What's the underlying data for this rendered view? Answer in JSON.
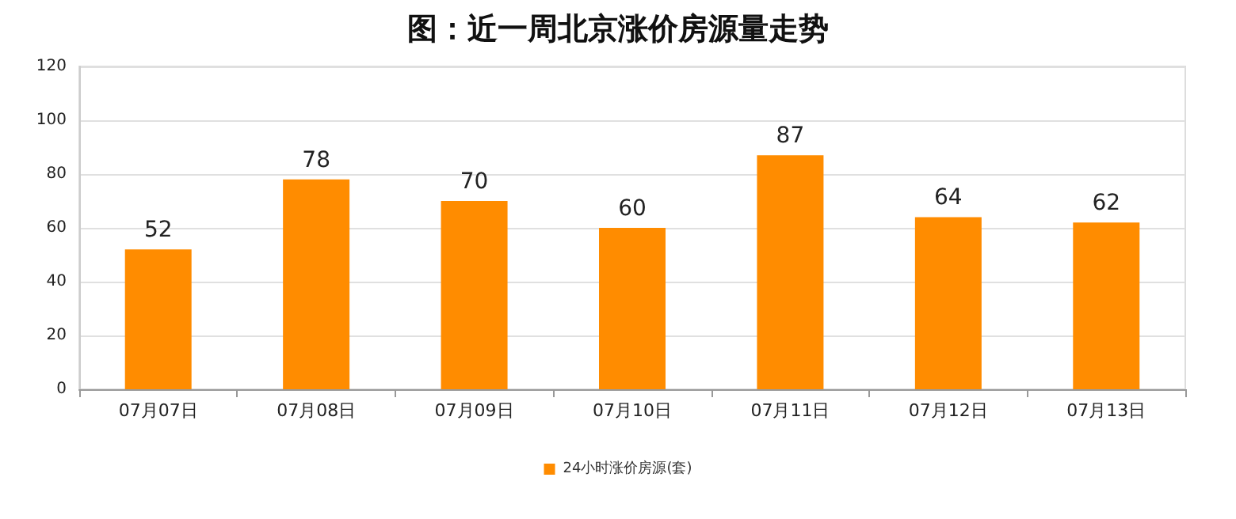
{
  "chart_data": {
    "type": "bar",
    "title": "图：近一周北京涨价房源量走势",
    "categories": [
      "07月07日",
      "07月08日",
      "07月09日",
      "07月10日",
      "07月11日",
      "07月12日",
      "07月13日"
    ],
    "series": [
      {
        "name": "24小时涨价房源(套)",
        "color": "#ff8c00",
        "values": [
          52,
          78,
          70,
          60,
          87,
          64,
          62
        ]
      }
    ],
    "ylim": [
      0,
      120
    ],
    "yticks": [
      0,
      20,
      40,
      60,
      80,
      100,
      120
    ],
    "grid": "y",
    "legend": "bottom",
    "data_labels": true
  }
}
